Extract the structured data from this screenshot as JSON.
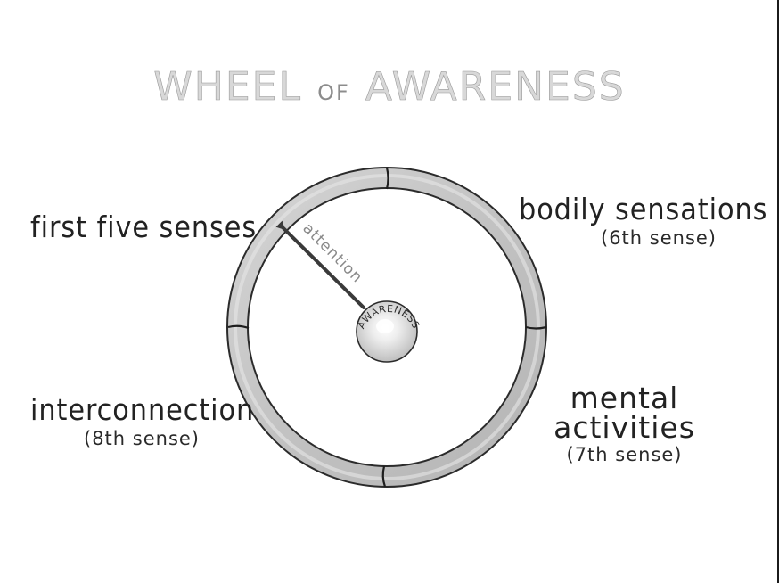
{
  "title": {
    "word1": "WHEEL",
    "word2": "OF",
    "word3": "AWARENESS"
  },
  "labels": {
    "first_five_senses": "first five senses",
    "bodily_sensations": "bodily sensations",
    "bodily_sub": "(6th sense)",
    "interconnection": "interconnection",
    "interconnection_sub": "(8th sense)",
    "mental_line1": "mental",
    "mental_line2": "activities",
    "mental_sub": "(7th sense)"
  },
  "wheel": {
    "hub_label": "AWARENESS",
    "arrow_label": "attention"
  },
  "colors": {
    "title": "#9a9a9a",
    "rim_fill": "#c8c8c8",
    "rim_stroke": "#2b2b2b",
    "arrow": "#3a3a3a",
    "text": "#222222"
  }
}
